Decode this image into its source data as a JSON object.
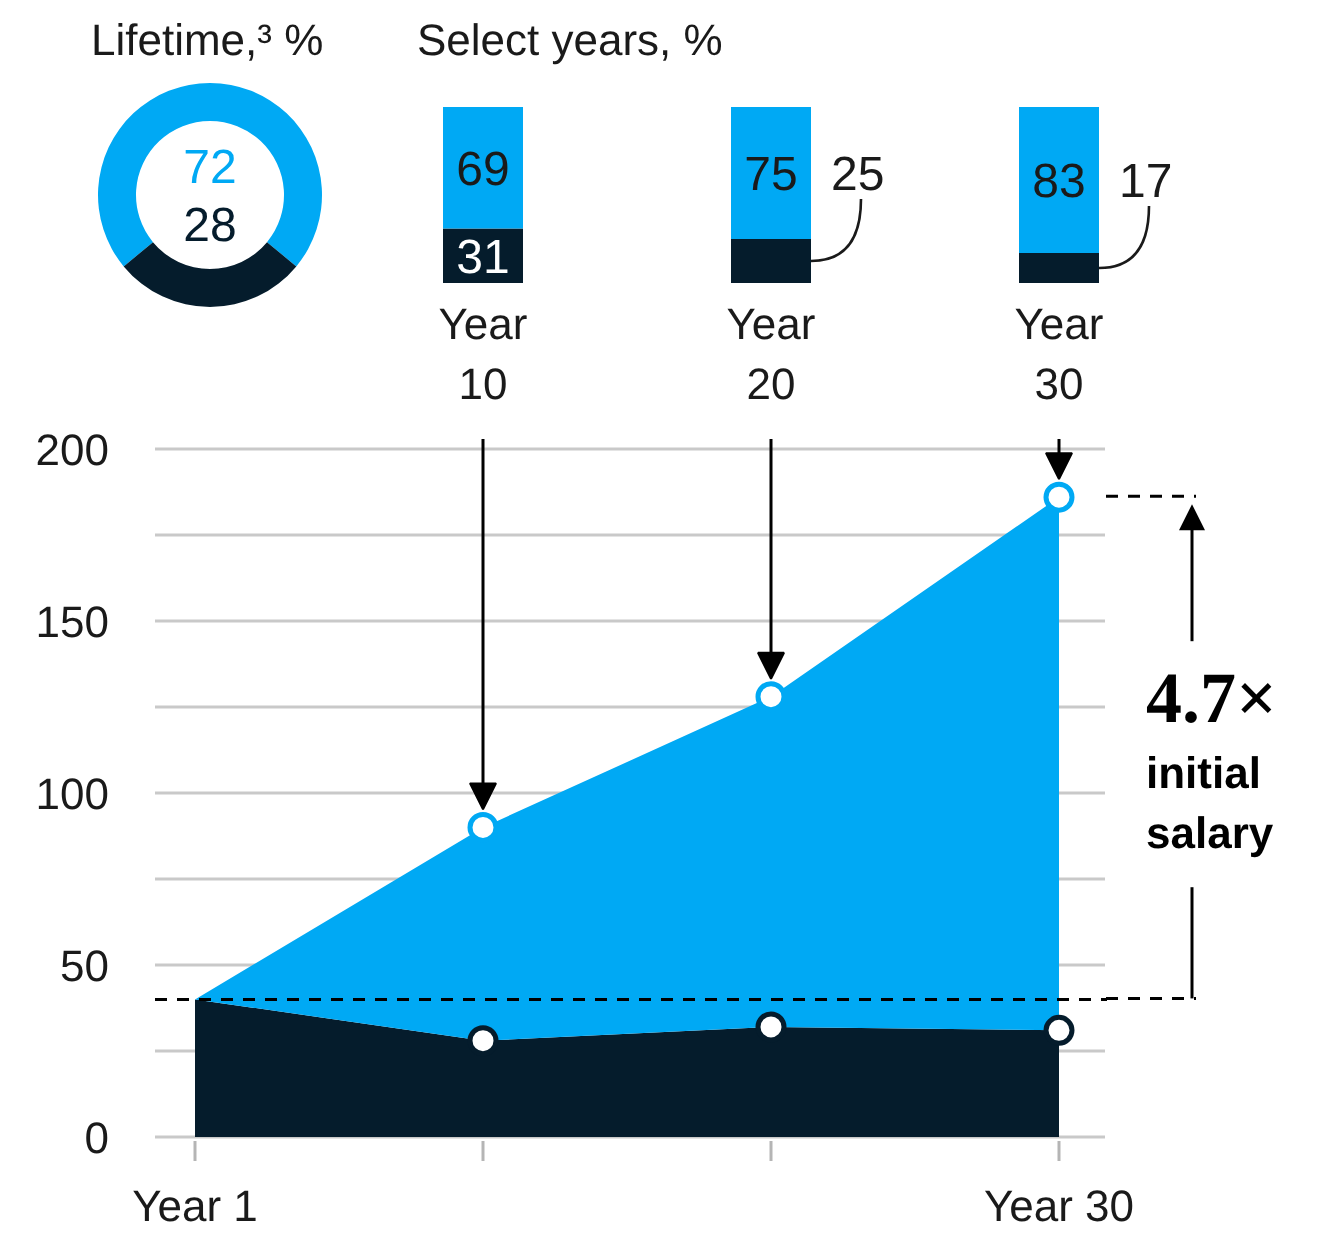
{
  "chart_data": [
    {
      "type": "donut",
      "title": "Lifetime,³ %",
      "categories": [
        null,
        null
      ],
      "values": [
        72,
        28
      ],
      "colors": [
        "#00a9f4",
        "#051c2c"
      ],
      "data_labels": true
    },
    {
      "type": "bar",
      "title": "Select years, %",
      "categories": [
        "Year 10",
        "Year 20",
        "Year 30"
      ],
      "stacked": true,
      "series": [
        {
          "color": "#051c2c",
          "values": [
            31,
            25,
            17
          ]
        },
        {
          "color": "#00a9f4",
          "values": [
            69,
            75,
            83
          ]
        }
      ],
      "data_labels": true
    },
    {
      "type": "area",
      "stacked": true,
      "categories": [
        "Year 1",
        null,
        null,
        "Year 30"
      ],
      "series": [
        {
          "color": "#051c2c",
          "values": [
            40,
            28,
            32,
            31
          ]
        },
        {
          "color": "#00a9f4",
          "values": [
            0,
            62,
            96,
            155
          ]
        },
        {
          "type": "scatter",
          "color": "#00a9f4",
          "marker": "circle",
          "values": [
            null,
            90,
            128,
            186
          ]
        },
        {
          "type": "scatter",
          "color": "#051c2c",
          "marker": "circle",
          "values": [
            null,
            28,
            32,
            31
          ]
        }
      ],
      "ylim": [
        0,
        200
      ],
      "yticks": [
        0,
        {
          "value": 25,
          "label": null
        },
        50,
        {
          "value": 75,
          "label": null
        },
        100,
        {
          "value": 125,
          "label": null
        },
        150,
        {
          "value": 175,
          "label": null
        },
        200
      ],
      "grid": "y",
      "ref_lines": [
        {
          "axis": "y",
          "value": 40,
          "color": "#000000",
          "line_style": "dashed"
        }
      ],
      "annotations": [
        "4.7×",
        "initial salary"
      ]
    }
  ]
}
